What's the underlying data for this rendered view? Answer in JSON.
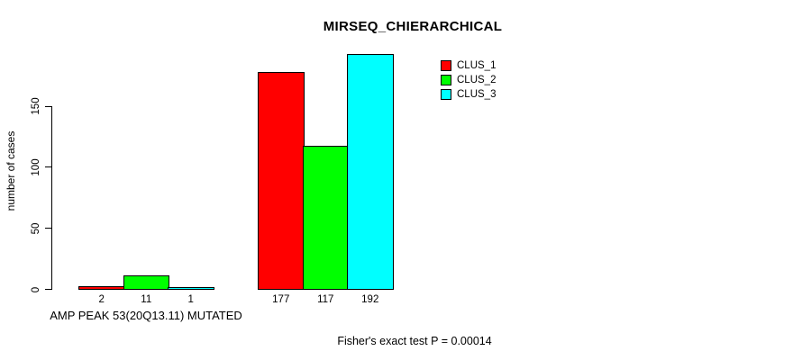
{
  "chart_data": {
    "type": "bar",
    "title": "MIRSEQ_CHIERARCHICAL",
    "ylabel": "number of cases",
    "xlabel": "AMP PEAK 53(20Q13.11) MUTATED",
    "footnote": "Fisher's exact test P = 0.00014",
    "ylim": [
      0,
      150
    ],
    "y_ticks": [
      0,
      50,
      100,
      150
    ],
    "grid": false,
    "legend_position": "top-right",
    "legend": [
      {
        "label": "CLUS_1",
        "color": "#ff0000"
      },
      {
        "label": "CLUS_2",
        "color": "#00ff00"
      },
      {
        "label": "CLUS_3",
        "color": "#00ffff"
      }
    ],
    "groups": [
      {
        "caption": "AMP PEAK 53(20Q13.11) MUTATED",
        "values": [
          2,
          11,
          1
        ]
      },
      {
        "caption": "",
        "values": [
          177,
          117,
          192
        ]
      }
    ],
    "colors": {
      "bar_border": "#000000",
      "background": "#ffffff"
    }
  }
}
